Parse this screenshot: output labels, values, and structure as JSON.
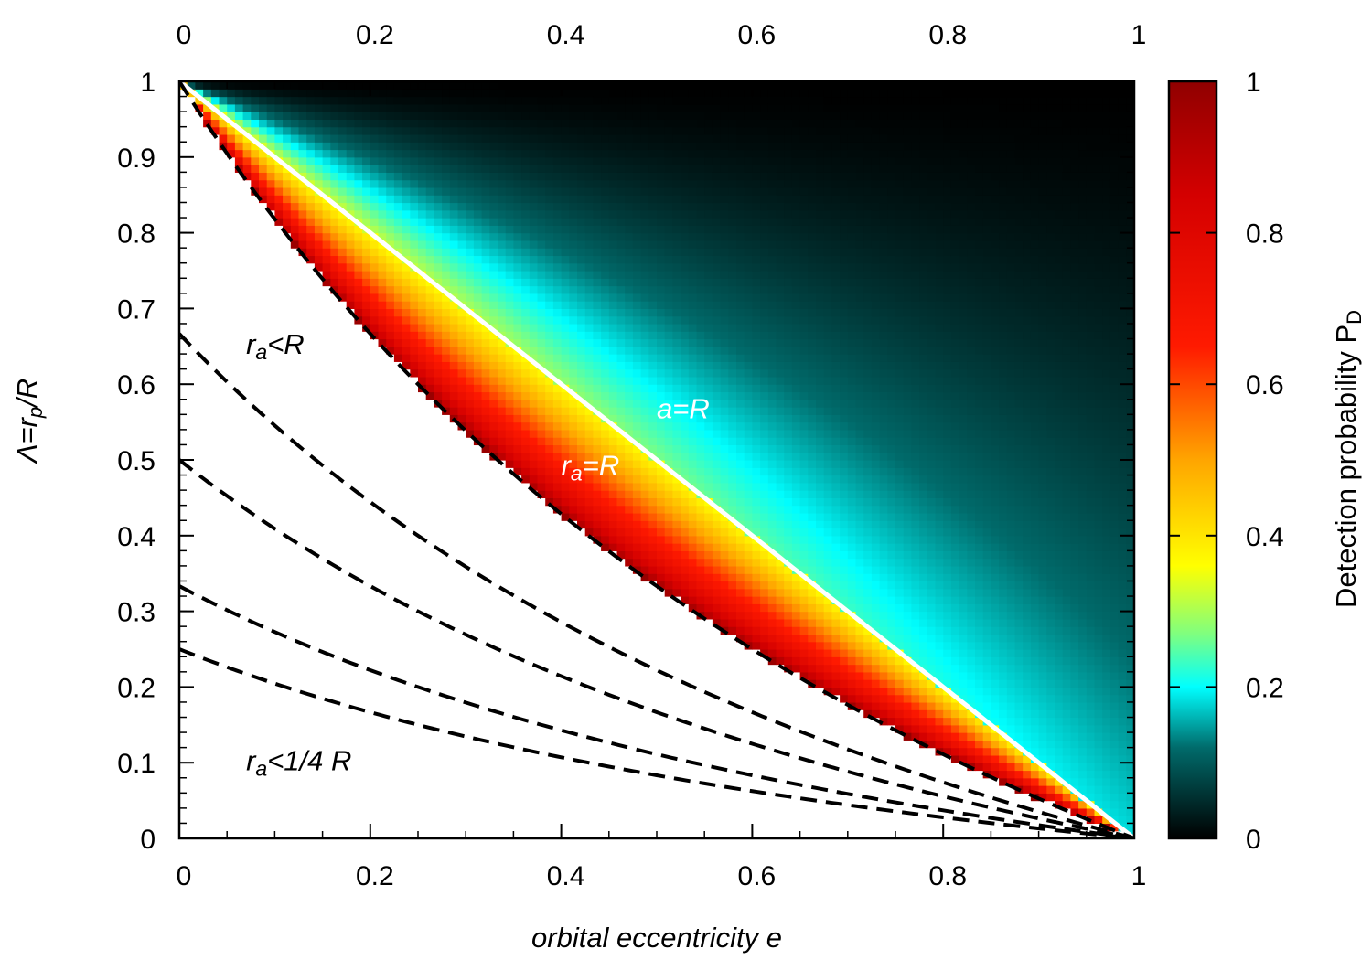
{
  "chart_data": {
    "type": "heatmap",
    "title": "",
    "xlabel": {
      "main": "orbital eccentricity ",
      "var": "e"
    },
    "ylabel": {
      "lead": "Λ=r",
      "sub": "p",
      "tail": "/R"
    },
    "xlim": [
      0,
      1
    ],
    "ylim": [
      0,
      1
    ],
    "x_ticks": [
      "0",
      "0.2",
      "0.4",
      "0.6",
      "0.8",
      "1"
    ],
    "x_tick_values": [
      0,
      0.2,
      0.4,
      0.6,
      0.8,
      1
    ],
    "x2_ticks": [
      "0",
      "0.2",
      "0.4",
      "0.6",
      "0.8",
      "1"
    ],
    "y_ticks": [
      "0",
      "0.1",
      "0.2",
      "0.3",
      "0.4",
      "0.5",
      "0.6",
      "0.7",
      "0.8",
      "0.9",
      "1"
    ],
    "y_tick_values": [
      0,
      0.1,
      0.2,
      0.3,
      0.4,
      0.5,
      0.6,
      0.7,
      0.8,
      0.9,
      1
    ],
    "colorbar": {
      "label": {
        "main": "Detection probability P",
        "sub": "D"
      },
      "range": [
        0,
        1
      ],
      "ticks": [
        "0",
        "0.2",
        "0.4",
        "0.6",
        "0.8",
        "1"
      ],
      "tick_values": [
        0,
        0.2,
        0.4,
        0.6,
        0.8,
        1
      ],
      "colormap": [
        {
          "v": 0.0,
          "color": "#000000"
        },
        {
          "v": 0.12,
          "color": "#006b6b"
        },
        {
          "v": 0.2,
          "color": "#00ffff"
        },
        {
          "v": 0.27,
          "color": "#7fff7f"
        },
        {
          "v": 0.36,
          "color": "#ffff00"
        },
        {
          "v": 0.5,
          "color": "#ffa500"
        },
        {
          "v": 0.65,
          "color": "#ff1a00"
        },
        {
          "v": 0.85,
          "color": "#d40000"
        },
        {
          "v": 1.0,
          "color": "#900000"
        }
      ]
    },
    "heatmap_model": "P_D = 0 where r_a < R (white region); decreasing from ~1 at r_a = R toward 0 at Λ = 1 and e = 1",
    "curves": [
      {
        "name": "a=R",
        "formula": "Λ = 1 - e",
        "style": "solid",
        "color": "#ffffff"
      },
      {
        "name": "r_a=R",
        "formula": "Λ = (1 - e)/(1 + e)",
        "style": "dashed",
        "color": "#000000"
      },
      {
        "formula": "Λ = (2/3)(1 - e)/(1 + e)",
        "style": "dashed",
        "color": "#000000"
      },
      {
        "formula": "Λ = (1/2)(1 - e)/(1 + e)",
        "style": "dashed",
        "color": "#000000"
      },
      {
        "formula": "Λ = (1/3)(1 - e)/(1 + e)",
        "style": "dashed",
        "color": "#000000"
      },
      {
        "formula": "Λ = (1/4)(1 - e)/(1 + e)",
        "style": "dashed",
        "color": "#000000"
      }
    ],
    "annotations": [
      {
        "id": "ra-lt-r",
        "lead": "r",
        "sub": "a",
        "tail": "<R",
        "color": "#000000",
        "at": [
          0.07,
          0.64
        ]
      },
      {
        "id": "a-eq-r",
        "lead": "a=R",
        "sub": "",
        "tail": "",
        "color": "#ffffff",
        "at": [
          0.5,
          0.555
        ]
      },
      {
        "id": "ra-eq-r",
        "lead": "r",
        "sub": "a",
        "tail": "=R",
        "color": "#ffffff",
        "at": [
          0.4,
          0.48
        ]
      },
      {
        "id": "ra-lt-quarter-r",
        "lead": "r",
        "sub": "a",
        "tail": "<1/4 R",
        "color": "#000000",
        "at": [
          0.07,
          0.09
        ]
      }
    ]
  }
}
